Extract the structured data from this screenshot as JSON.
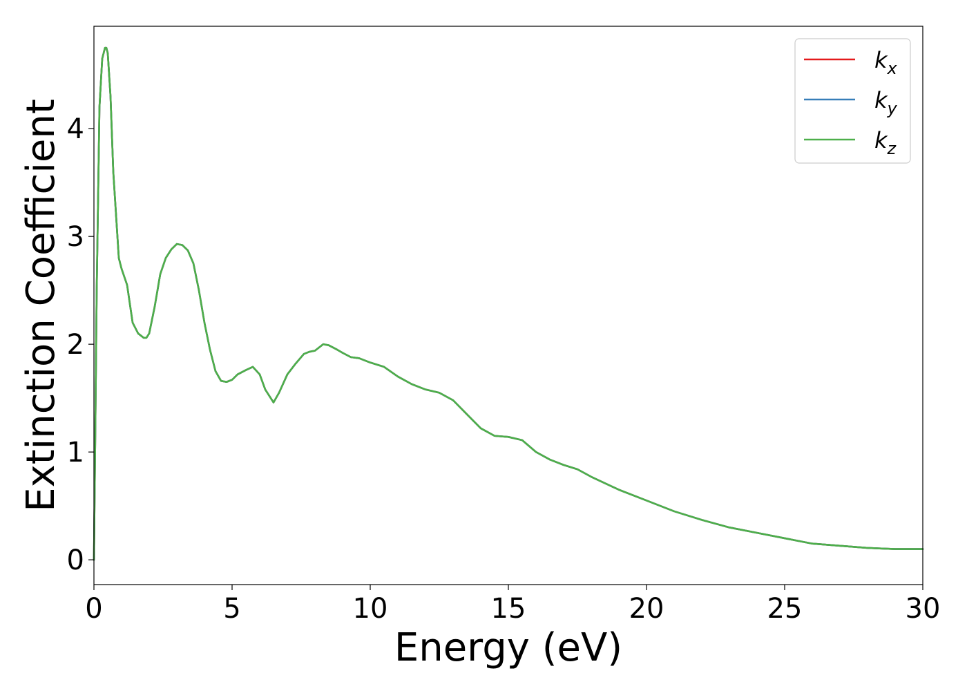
{
  "chart_data": {
    "type": "line",
    "title": "",
    "xlabel": "Energy (eV)",
    "ylabel": "Extinction Coefficient",
    "xlim": [
      0,
      30
    ],
    "ylim": [
      -0.23,
      4.95
    ],
    "xticks": [
      0,
      5,
      10,
      15,
      20,
      25,
      30
    ],
    "yticks": [
      0,
      1,
      2,
      3,
      4
    ],
    "grid": false,
    "legend_position": "top-right",
    "x": [
      0,
      0.05,
      0.1,
      0.2,
      0.3,
      0.4,
      0.45,
      0.5,
      0.6,
      0.7,
      0.8,
      0.9,
      1.0,
      1.2,
      1.4,
      1.6,
      1.8,
      1.9,
      2.0,
      2.2,
      2.4,
      2.6,
      2.8,
      3.0,
      3.2,
      3.4,
      3.6,
      3.8,
      4.0,
      4.2,
      4.4,
      4.6,
      4.8,
      5.0,
      5.2,
      5.5,
      5.75,
      6.0,
      6.2,
      6.5,
      6.7,
      7.0,
      7.3,
      7.6,
      7.8,
      8.0,
      8.3,
      8.5,
      8.8,
      9.0,
      9.3,
      9.6,
      10.0,
      10.5,
      11.0,
      11.5,
      12.0,
      12.5,
      13.0,
      13.5,
      14.0,
      14.5,
      15.0,
      15.5,
      16.0,
      16.5,
      17.0,
      17.5,
      18.0,
      19.0,
      20.0,
      21.0,
      22.0,
      23.0,
      24.0,
      25.0,
      26.0,
      27.0,
      28.0,
      29.0,
      30.0
    ],
    "series": [
      {
        "name": "k_x",
        "color": "#e41a1c",
        "values": [
          0,
          1.2,
          2.5,
          4.2,
          4.65,
          4.75,
          4.75,
          4.7,
          4.3,
          3.6,
          3.2,
          2.8,
          2.7,
          2.55,
          2.2,
          2.1,
          2.06,
          2.06,
          2.1,
          2.35,
          2.65,
          2.8,
          2.88,
          2.93,
          2.92,
          2.87,
          2.75,
          2.5,
          2.2,
          1.95,
          1.75,
          1.66,
          1.65,
          1.67,
          1.72,
          1.76,
          1.79,
          1.72,
          1.58,
          1.46,
          1.55,
          1.72,
          1.82,
          1.91,
          1.93,
          1.94,
          2.0,
          1.99,
          1.95,
          1.92,
          1.88,
          1.87,
          1.83,
          1.79,
          1.7,
          1.63,
          1.58,
          1.55,
          1.48,
          1.35,
          1.22,
          1.15,
          1.14,
          1.11,
          1.0,
          0.93,
          0.88,
          0.84,
          0.77,
          0.65,
          0.55,
          0.45,
          0.37,
          0.3,
          0.25,
          0.2,
          0.15,
          0.13,
          0.11,
          0.1,
          0.1
        ]
      },
      {
        "name": "k_y",
        "color": "#377eb8",
        "values": [
          0,
          1.2,
          2.5,
          4.2,
          4.65,
          4.75,
          4.75,
          4.7,
          4.3,
          3.6,
          3.2,
          2.8,
          2.7,
          2.55,
          2.2,
          2.1,
          2.06,
          2.06,
          2.1,
          2.35,
          2.65,
          2.8,
          2.88,
          2.93,
          2.92,
          2.87,
          2.75,
          2.5,
          2.2,
          1.95,
          1.75,
          1.66,
          1.65,
          1.67,
          1.72,
          1.76,
          1.79,
          1.72,
          1.58,
          1.46,
          1.55,
          1.72,
          1.82,
          1.91,
          1.93,
          1.94,
          2.0,
          1.99,
          1.95,
          1.92,
          1.88,
          1.87,
          1.83,
          1.79,
          1.7,
          1.63,
          1.58,
          1.55,
          1.48,
          1.35,
          1.22,
          1.15,
          1.14,
          1.11,
          1.0,
          0.93,
          0.88,
          0.84,
          0.77,
          0.65,
          0.55,
          0.45,
          0.37,
          0.3,
          0.25,
          0.2,
          0.15,
          0.13,
          0.11,
          0.1,
          0.1
        ]
      },
      {
        "name": "k_z",
        "color": "#4daf4a",
        "values": [
          0,
          1.2,
          2.5,
          4.2,
          4.65,
          4.75,
          4.75,
          4.7,
          4.3,
          3.6,
          3.2,
          2.8,
          2.7,
          2.55,
          2.2,
          2.1,
          2.06,
          2.06,
          2.1,
          2.35,
          2.65,
          2.8,
          2.88,
          2.93,
          2.92,
          2.87,
          2.75,
          2.5,
          2.2,
          1.95,
          1.75,
          1.66,
          1.65,
          1.67,
          1.72,
          1.76,
          1.79,
          1.72,
          1.58,
          1.46,
          1.55,
          1.72,
          1.82,
          1.91,
          1.93,
          1.94,
          2.0,
          1.99,
          1.95,
          1.92,
          1.88,
          1.87,
          1.83,
          1.79,
          1.7,
          1.63,
          1.58,
          1.55,
          1.48,
          1.35,
          1.22,
          1.15,
          1.14,
          1.11,
          1.0,
          0.93,
          0.88,
          0.84,
          0.77,
          0.65,
          0.55,
          0.45,
          0.37,
          0.3,
          0.25,
          0.2,
          0.15,
          0.13,
          0.11,
          0.1,
          0.1
        ]
      }
    ],
    "legend": [
      {
        "base": "k",
        "sub": "x"
      },
      {
        "base": "k",
        "sub": "y"
      },
      {
        "base": "k",
        "sub": "z"
      }
    ]
  }
}
